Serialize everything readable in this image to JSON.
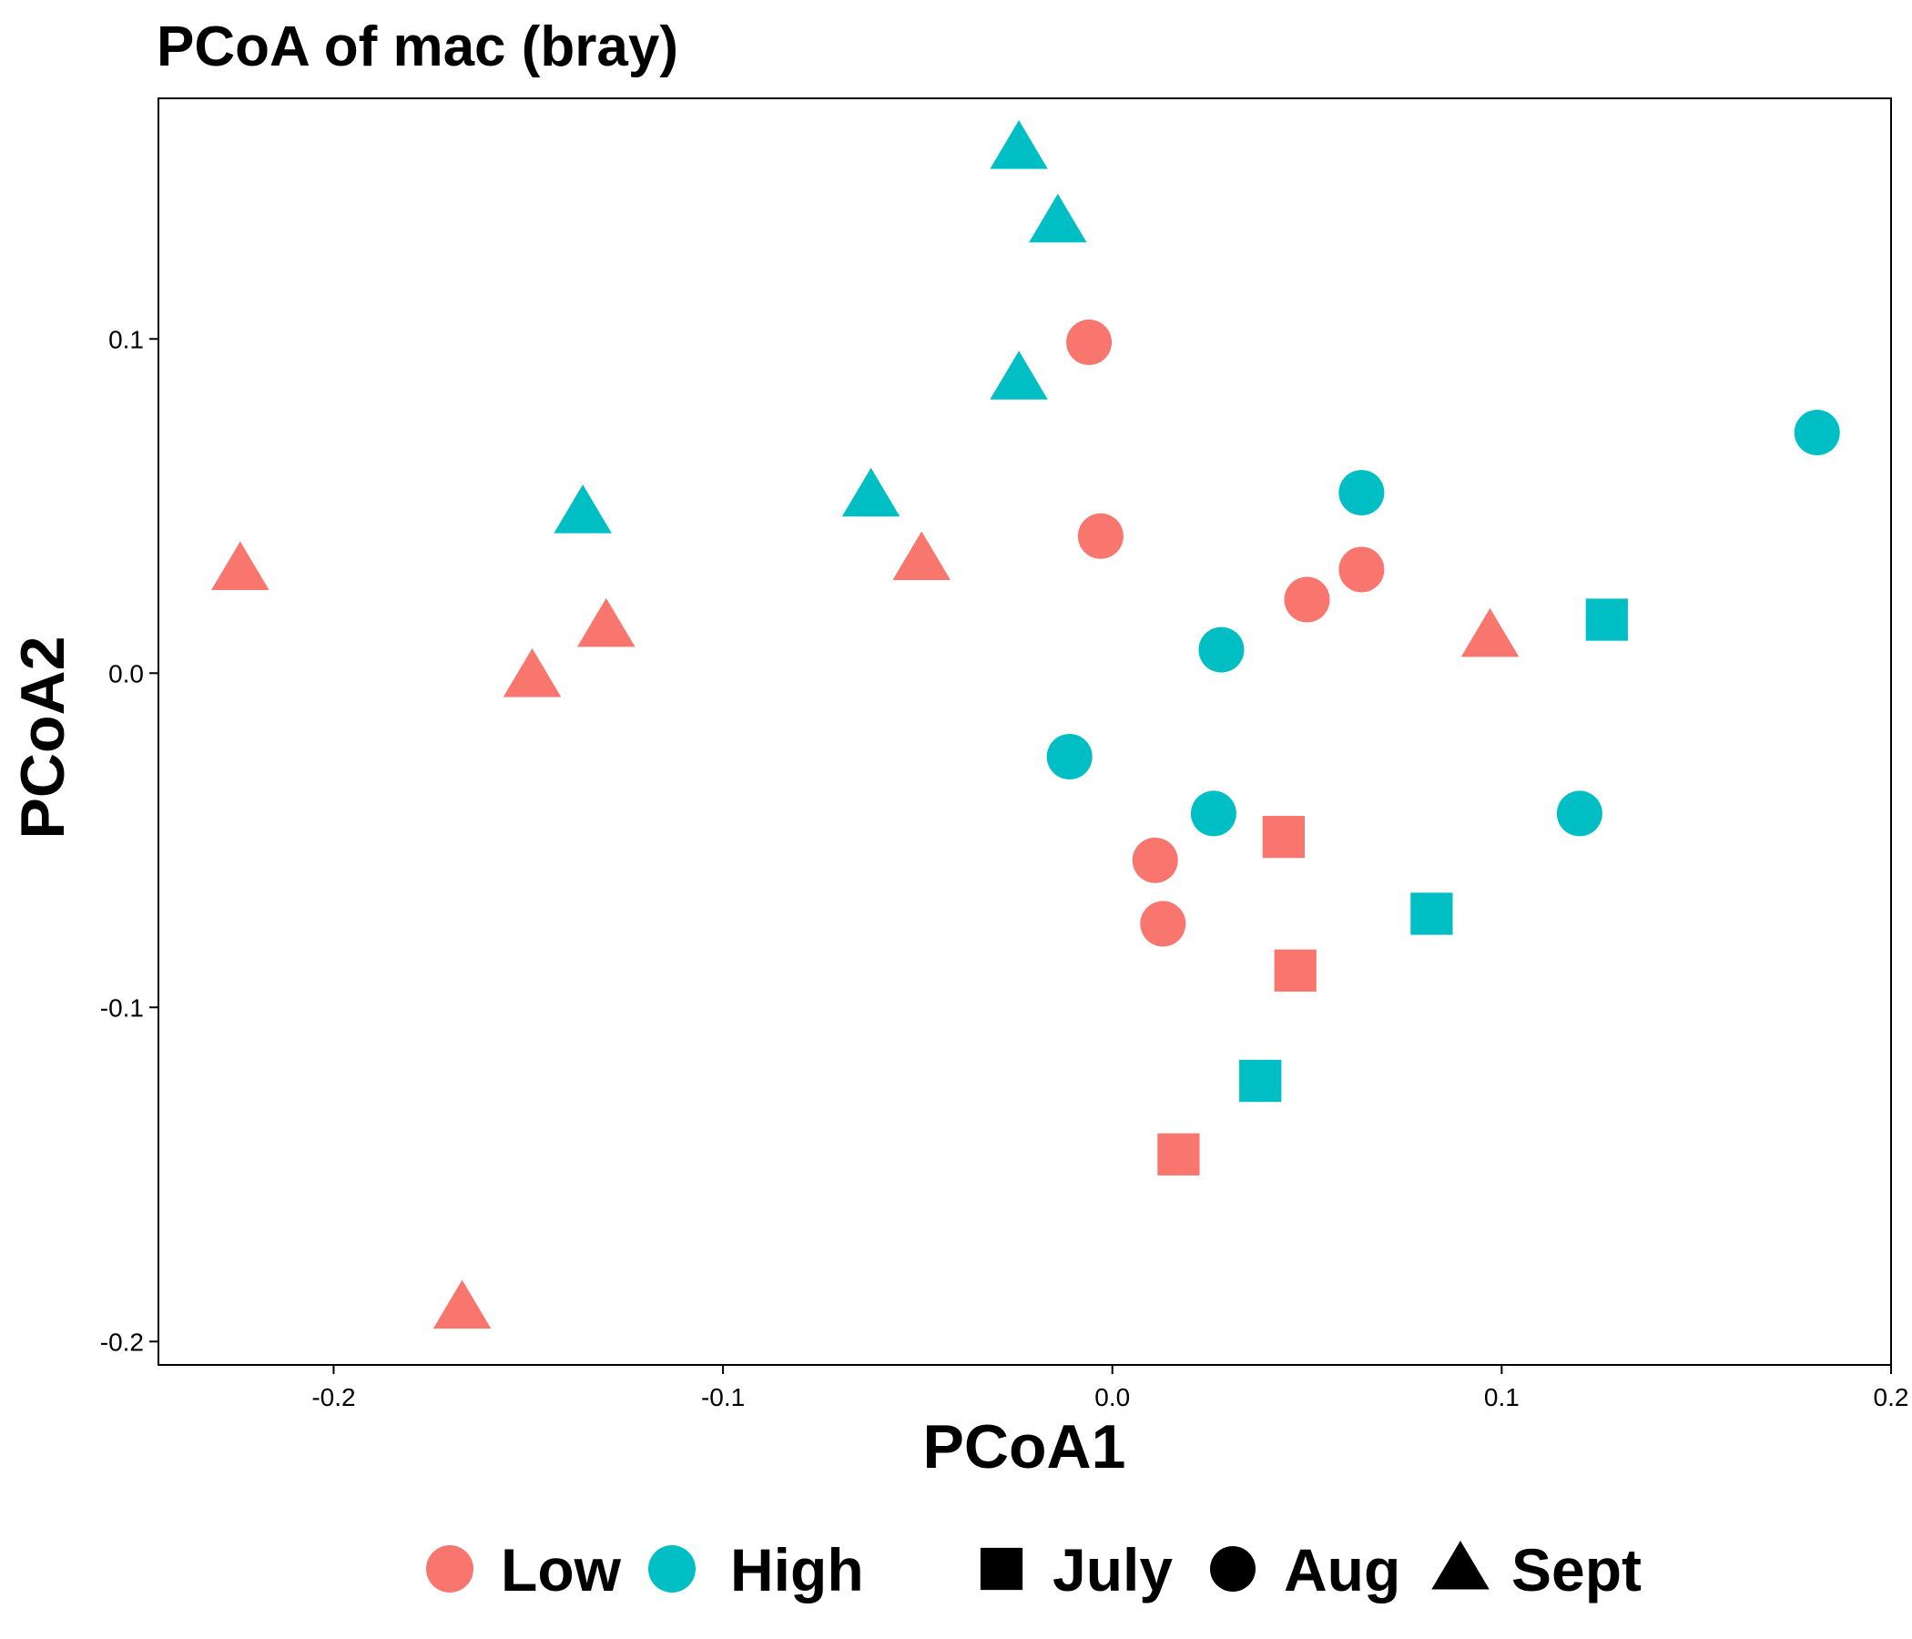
{
  "chart_data": {
    "type": "scatter",
    "title": "PCoA of mac (bray)",
    "xlabel": "PCoA1",
    "ylabel": "PCoA2",
    "xlim": [
      -0.245,
      0.2
    ],
    "ylim": [
      -0.207,
      0.172
    ],
    "xticks": [
      -0.2,
      -0.1,
      0.0,
      0.1,
      0.2
    ],
    "xtick_labels": [
      "-0.2",
      "-0.1",
      "0.0",
      "0.1",
      "0.2"
    ],
    "yticks": [
      -0.2,
      -0.1,
      0.0,
      0.1
    ],
    "ytick_labels": [
      "-0.2",
      "-0.1",
      "0.0",
      "0.1"
    ],
    "grid": false,
    "legend_position": "bottom",
    "color_legend": [
      {
        "name": "Low",
        "color": "#F8766D"
      },
      {
        "name": "High",
        "color": "#00BFC4"
      }
    ],
    "shape_legend": [
      {
        "name": "July",
        "shape": "square"
      },
      {
        "name": "Aug",
        "shape": "circle"
      },
      {
        "name": "Sept",
        "shape": "triangle"
      }
    ],
    "series": [
      {
        "name": "Low",
        "color": "#F8766D",
        "points": [
          {
            "x": -0.006,
            "y": 0.099,
            "month": "Aug"
          },
          {
            "x": -0.003,
            "y": 0.041,
            "month": "Aug"
          },
          {
            "x": 0.05,
            "y": 0.022,
            "month": "Aug"
          },
          {
            "x": 0.064,
            "y": 0.031,
            "month": "Aug"
          },
          {
            "x": 0.011,
            "y": -0.056,
            "month": "Aug"
          },
          {
            "x": 0.013,
            "y": -0.075,
            "month": "Aug"
          },
          {
            "x": 0.044,
            "y": -0.049,
            "month": "July"
          },
          {
            "x": 0.047,
            "y": -0.089,
            "month": "July"
          },
          {
            "x": 0.017,
            "y": -0.144,
            "month": "July"
          },
          {
            "x": -0.224,
            "y": 0.031,
            "month": "Sept"
          },
          {
            "x": -0.149,
            "y": -0.001,
            "month": "Sept"
          },
          {
            "x": -0.13,
            "y": 0.014,
            "month": "Sept"
          },
          {
            "x": -0.049,
            "y": 0.034,
            "month": "Sept"
          },
          {
            "x": 0.097,
            "y": 0.011,
            "month": "Sept"
          },
          {
            "x": -0.167,
            "y": -0.19,
            "month": "Sept"
          }
        ]
      },
      {
        "name": "High",
        "color": "#00BFC4",
        "points": [
          {
            "x": 0.181,
            "y": 0.072,
            "month": "Aug"
          },
          {
            "x": 0.064,
            "y": 0.054,
            "month": "Aug"
          },
          {
            "x": 0.028,
            "y": 0.007,
            "month": "Aug"
          },
          {
            "x": -0.011,
            "y": -0.025,
            "month": "Aug"
          },
          {
            "x": 0.026,
            "y": -0.042,
            "month": "Aug"
          },
          {
            "x": 0.12,
            "y": -0.042,
            "month": "Aug"
          },
          {
            "x": 0.127,
            "y": 0.016,
            "month": "July"
          },
          {
            "x": 0.082,
            "y": -0.072,
            "month": "July"
          },
          {
            "x": 0.038,
            "y": -0.122,
            "month": "July"
          },
          {
            "x": -0.024,
            "y": 0.157,
            "month": "Sept"
          },
          {
            "x": -0.014,
            "y": 0.135,
            "month": "Sept"
          },
          {
            "x": -0.024,
            "y": 0.088,
            "month": "Sept"
          },
          {
            "x": -0.136,
            "y": 0.048,
            "month": "Sept"
          },
          {
            "x": -0.062,
            "y": 0.053,
            "month": "Sept"
          }
        ]
      }
    ]
  }
}
